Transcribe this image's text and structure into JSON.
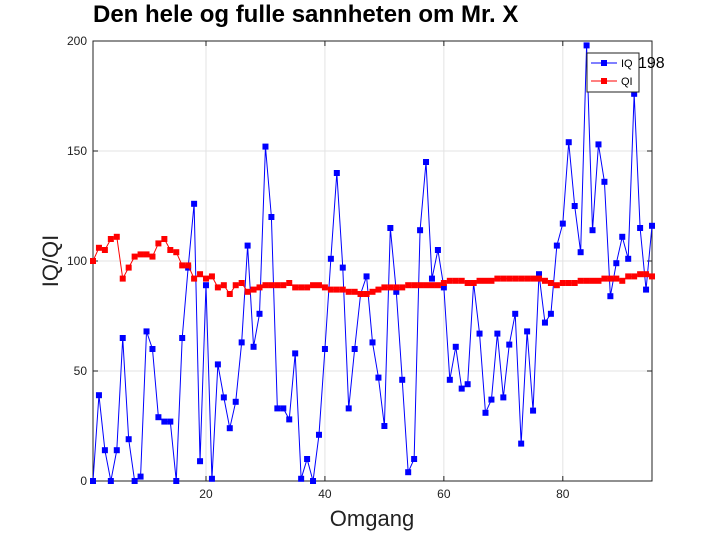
{
  "chart_data": {
    "type": "line",
    "title": "Den hele og fulle sannheten om Mr. X",
    "xlabel": "Omgang",
    "ylabel": "IQ/QI",
    "xlim": [
      1,
      95
    ],
    "ylim": [
      0,
      200
    ],
    "xticks": [
      20,
      40,
      60,
      80
    ],
    "yticks": [
      0,
      50,
      100,
      150,
      200
    ],
    "grid": true,
    "legend": "top-right",
    "series": [
      {
        "name": "IQ",
        "color": "#0000ff",
        "values": [
          0,
          39,
          14,
          0,
          14,
          65,
          19,
          0,
          2,
          68,
          60,
          29,
          27,
          27,
          0,
          65,
          97,
          126,
          9,
          89,
          1,
          53,
          38,
          24,
          36,
          63,
          107,
          61,
          76,
          152,
          120,
          33,
          33,
          28,
          58,
          1,
          10,
          0,
          21,
          60,
          101,
          140,
          97,
          33,
          60,
          85,
          93,
          63,
          47,
          25,
          115,
          86,
          46,
          4,
          10,
          114,
          145,
          92,
          105,
          88,
          46,
          61,
          42,
          44,
          90,
          67,
          31,
          37,
          67,
          38,
          62,
          76,
          17,
          68,
          32,
          94,
          72,
          76,
          107,
          117,
          154,
          125,
          104,
          198,
          114,
          153,
          136,
          84,
          99,
          111,
          101,
          176,
          115,
          87,
          116
        ]
      },
      {
        "name": "QI",
        "color": "#ff0000",
        "values": [
          100,
          106,
          105,
          110,
          111,
          92,
          97,
          102,
          103,
          103,
          102,
          108,
          110,
          105,
          104,
          98,
          98,
          92,
          94,
          92,
          93,
          88,
          89,
          85,
          89,
          90,
          86,
          87,
          88,
          89,
          89,
          89,
          89,
          90,
          88,
          88,
          88,
          89,
          89,
          88,
          87,
          87,
          87,
          86,
          86,
          85,
          85,
          86,
          87,
          88,
          88,
          88,
          88,
          89,
          89,
          89,
          89,
          89,
          89,
          90,
          91,
          91,
          91,
          90,
          90,
          91,
          91,
          91,
          92,
          92,
          92,
          92,
          92,
          92,
          92,
          92,
          91,
          90,
          89,
          90,
          90,
          90,
          91,
          91,
          91,
          91,
          92,
          92,
          92,
          91,
          93,
          93,
          94,
          94,
          93
        ]
      }
    ],
    "annotation": {
      "text": "198",
      "x": 84,
      "y": 198
    }
  }
}
